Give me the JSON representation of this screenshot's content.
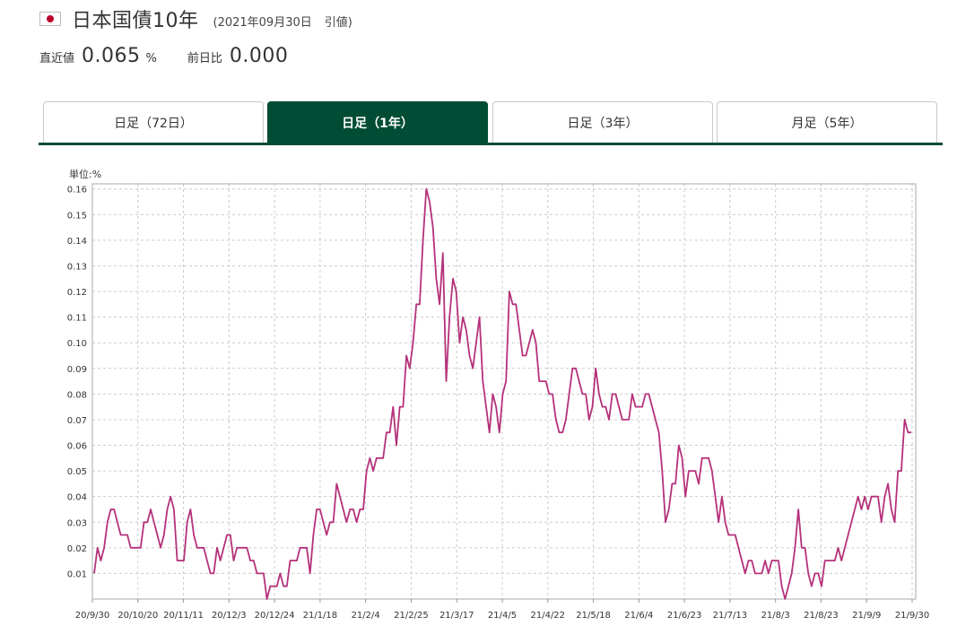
{
  "header": {
    "title": "日本国債10年",
    "date": "(2021年09月30日",
    "close_label": "引値)"
  },
  "stats": {
    "latest_label": "直近値",
    "latest_value": "0.065",
    "latest_unit": "%",
    "change_label": "前日比",
    "change_value": "0.000"
  },
  "tabs": [
    {
      "label": "日足（72日）",
      "active": false
    },
    {
      "label": "日足（1年）",
      "active": true
    },
    {
      "label": "日足（3年）",
      "active": false
    },
    {
      "label": "月足（5年）",
      "active": false
    }
  ],
  "colors": {
    "line": "#b5317a",
    "tab_active": "#004c34",
    "grid": "#cccccc"
  },
  "chart_data": {
    "type": "line",
    "unit_label": "単位:%",
    "ylim": [
      0,
      0.162
    ],
    "y_ticks": [
      "0.01",
      "0.02",
      "0.03",
      "0.04",
      "0.05",
      "0.06",
      "0.07",
      "0.08",
      "0.09",
      "0.10",
      "0.11",
      "0.12",
      "0.13",
      "0.14",
      "0.15",
      "0.16"
    ],
    "x_ticks": [
      "20/9/30",
      "20/10/20",
      "20/11/11",
      "20/12/3",
      "20/12/24",
      "21/1/18",
      "21/2/4",
      "21/2/25",
      "21/3/17",
      "21/4/5",
      "21/4/22",
      "21/5/18",
      "21/6/4",
      "21/6/23",
      "21/7/13",
      "21/8/3",
      "21/8/23",
      "21/9/9",
      "21/9/30"
    ],
    "grid": true,
    "series": [
      {
        "values": [
          0.01,
          0.02,
          0.015,
          0.02,
          0.03,
          0.035,
          0.035,
          0.03,
          0.025,
          0.025,
          0.025,
          0.02,
          0.02,
          0.02,
          0.02,
          0.03,
          0.03,
          0.035,
          0.03,
          0.025,
          0.02,
          0.025,
          0.035,
          0.04,
          0.035,
          0.015,
          0.015,
          0.015,
          0.03,
          0.035,
          0.025,
          0.02,
          0.02,
          0.02,
          0.015,
          0.01,
          0.01,
          0.02,
          0.015,
          0.02,
          0.025,
          0.025,
          0.015,
          0.02,
          0.02,
          0.02,
          0.02,
          0.015,
          0.015,
          0.01,
          0.01,
          0.01,
          0.0,
          0.005,
          0.005,
          0.005,
          0.01,
          0.005,
          0.005,
          0.015,
          0.015,
          0.015,
          0.02,
          0.02,
          0.02,
          0.01,
          0.025,
          0.035,
          0.035,
          0.03,
          0.025,
          0.03,
          0.03,
          0.045,
          0.04,
          0.035,
          0.03,
          0.035,
          0.035,
          0.03,
          0.035,
          0.035,
          0.05,
          0.055,
          0.05,
          0.055,
          0.055,
          0.055,
          0.065,
          0.065,
          0.075,
          0.06,
          0.075,
          0.075,
          0.095,
          0.09,
          0.1,
          0.115,
          0.115,
          0.14,
          0.16,
          0.155,
          0.145,
          0.125,
          0.115,
          0.135,
          0.085,
          0.11,
          0.125,
          0.12,
          0.1,
          0.11,
          0.105,
          0.095,
          0.09,
          0.1,
          0.11,
          0.085,
          0.075,
          0.065,
          0.08,
          0.075,
          0.065,
          0.08,
          0.085,
          0.12,
          0.115,
          0.115,
          0.105,
          0.095,
          0.095,
          0.1,
          0.105,
          0.1,
          0.085,
          0.085,
          0.085,
          0.08,
          0.08,
          0.07,
          0.065,
          0.065,
          0.07,
          0.08,
          0.09,
          0.09,
          0.085,
          0.08,
          0.08,
          0.07,
          0.075,
          0.09,
          0.08,
          0.075,
          0.075,
          0.07,
          0.08,
          0.08,
          0.075,
          0.07,
          0.07,
          0.07,
          0.08,
          0.075,
          0.075,
          0.075,
          0.08,
          0.08,
          0.075,
          0.07,
          0.065,
          0.05,
          0.03,
          0.035,
          0.045,
          0.045,
          0.06,
          0.055,
          0.04,
          0.05,
          0.05,
          0.05,
          0.045,
          0.055,
          0.055,
          0.055,
          0.05,
          0.04,
          0.03,
          0.04,
          0.03,
          0.025,
          0.025,
          0.025,
          0.02,
          0.015,
          0.01,
          0.015,
          0.015,
          0.01,
          0.01,
          0.01,
          0.015,
          0.01,
          0.015,
          0.015,
          0.015,
          0.005,
          0.0,
          0.005,
          0.01,
          0.02,
          0.035,
          0.02,
          0.02,
          0.01,
          0.005,
          0.01,
          0.01,
          0.005,
          0.015,
          0.015,
          0.015,
          0.015,
          0.02,
          0.015,
          0.02,
          0.025,
          0.03,
          0.035,
          0.04,
          0.035,
          0.04,
          0.035,
          0.04,
          0.04,
          0.04,
          0.03,
          0.04,
          0.045,
          0.035,
          0.03,
          0.05,
          0.05,
          0.07,
          0.065,
          0.065
        ]
      }
    ]
  }
}
